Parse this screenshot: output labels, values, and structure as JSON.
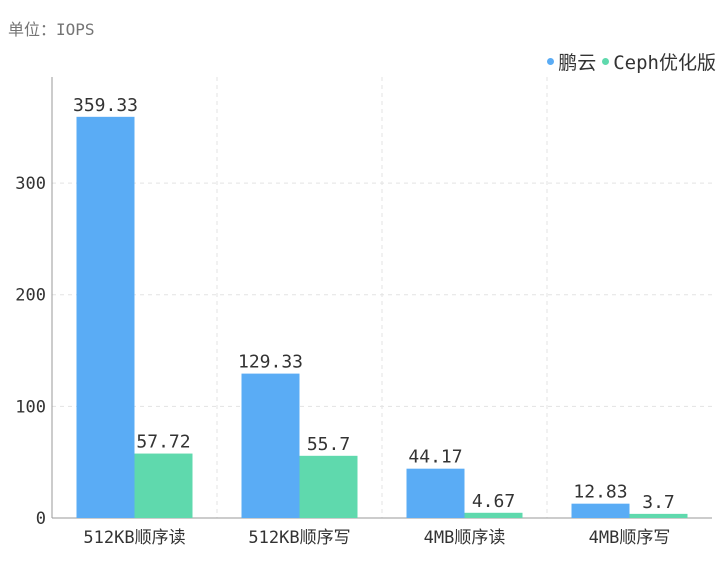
{
  "unit_label": "单位：IOPS",
  "colors": {
    "series1": "#5aacf5",
    "series2": "#5fd9ad",
    "grid": "#e3e3e3",
    "axis": "#9a9a9a",
    "text": "#333333"
  },
  "chart_data": {
    "type": "bar",
    "categories": [
      "512KB顺序读",
      "512KB顺序写",
      "4MB顺序读",
      "4MB顺序写"
    ],
    "series": [
      {
        "name": "鹏云",
        "values": [
          359.33,
          129.33,
          44.17,
          12.83
        ],
        "labels": [
          "359.33",
          "129.33",
          "44.17",
          "12.83"
        ]
      },
      {
        "name": "Ceph优化版",
        "values": [
          57.72,
          55.7,
          4.67,
          3.7
        ],
        "labels": [
          "57.72",
          "55.7",
          "4.67",
          "3.7"
        ]
      }
    ],
    "ylim": [
      0,
      395
    ],
    "yticks": [
      0,
      100,
      200,
      300
    ],
    "grid": true,
    "legend_position": "top-right"
  }
}
